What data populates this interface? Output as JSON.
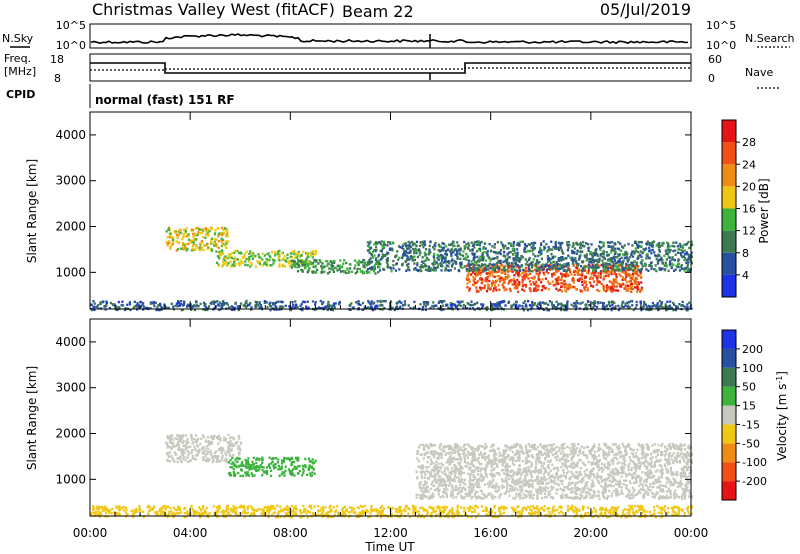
{
  "header": {
    "title": "Christmas Valley West (fitACF)",
    "beam": "Beam 22",
    "date": "05/Jul/2019"
  },
  "strips": {
    "nsky_label": "N.Sky",
    "nsky_ticks": [
      "10^5",
      "10^0"
    ],
    "nsearch_label": "N.Search",
    "nsearch_ticks": [
      "10^5",
      "10^0"
    ],
    "freq_label_1": "Freq.",
    "freq_label_2": "[MHz]",
    "freq_ticks": [
      "18",
      "8"
    ],
    "nave_label": "Nave",
    "nave_ticks": [
      "60",
      "0"
    ],
    "cpid_label": "CPID",
    "cpid_text": "normal (fast) 151 RF"
  },
  "colors": {
    "power": [
      "#1e32e6",
      "#2850a0",
      "#3c7850",
      "#3cb43c",
      "#f0c814",
      "#f08c14",
      "#f05014",
      "#e61414"
    ],
    "velocity": [
      "#1e32e6",
      "#2850a0",
      "#3c7850",
      "#3cb43c",
      "#c8c8be",
      "#f0c814",
      "#f08c14",
      "#f05014",
      "#e61414"
    ],
    "velocity_scatter": "#c8c8be"
  },
  "chart_data": [
    {
      "type": "heatmap",
      "name": "power",
      "ylabel": "Slant Range [km]",
      "yticks": [
        "1000",
        "2000",
        "3000",
        "4000"
      ],
      "ylim": [
        200,
        4500
      ],
      "xticks": [
        "00:00",
        "04:00",
        "08:00",
        "12:00",
        "16:00",
        "20:00",
        "00:00"
      ],
      "xlim_hours": [
        0,
        24
      ],
      "colorbar_label": "Power [dB]",
      "colorbar_ticks": [
        "4",
        "8",
        "12",
        "16",
        "20",
        "24",
        "28"
      ],
      "colorbar_range": [
        0,
        32
      ],
      "regions": [
        {
          "t0": 3.0,
          "t1": 5.5,
          "r0": 1500,
          "r1": 2000,
          "value": 18
        },
        {
          "t0": 5.0,
          "t1": 9.0,
          "r0": 1150,
          "r1": 1500,
          "value": 16
        },
        {
          "t0": 8.0,
          "t1": 11.5,
          "r0": 1000,
          "r1": 1300,
          "value": 12
        },
        {
          "t0": 15.0,
          "t1": 22.0,
          "r0": 600,
          "r1": 1200,
          "value": 26
        },
        {
          "t0": 11.0,
          "t1": 24.0,
          "r0": 1050,
          "r1": 1700,
          "value": 9
        },
        {
          "t0": 0.0,
          "t1": 24.0,
          "r0": 200,
          "r1": 400,
          "value": 7
        }
      ]
    },
    {
      "type": "heatmap",
      "name": "velocity",
      "ylabel": "Slant Range [km]",
      "yticks": [
        "1000",
        "2000",
        "3000",
        "4000"
      ],
      "ylim": [
        200,
        4500
      ],
      "xticks": [
        "00:00",
        "04:00",
        "08:00",
        "12:00",
        "16:00",
        "20:00",
        "00:00"
      ],
      "xlim_hours": [
        0,
        24
      ],
      "xlabel": "Time UT",
      "colorbar_label": "Velocity [m s^-1]",
      "colorbar_ticks": [
        "200",
        "100",
        "50",
        "15",
        "-15",
        "-50",
        "-100",
        "-200"
      ],
      "regions": [
        {
          "t0": 3.0,
          "t1": 6.0,
          "r0": 1400,
          "r1": 2000,
          "value": 0
        },
        {
          "t0": 5.5,
          "t1": 9.0,
          "r0": 1100,
          "r1": 1500,
          "value": 40
        },
        {
          "t0": 13.0,
          "t1": 24.0,
          "r0": 600,
          "r1": 1800,
          "value": 0
        },
        {
          "t0": 0.0,
          "t1": 24.0,
          "r0": 200,
          "r1": 450,
          "value": -30
        }
      ]
    }
  ]
}
